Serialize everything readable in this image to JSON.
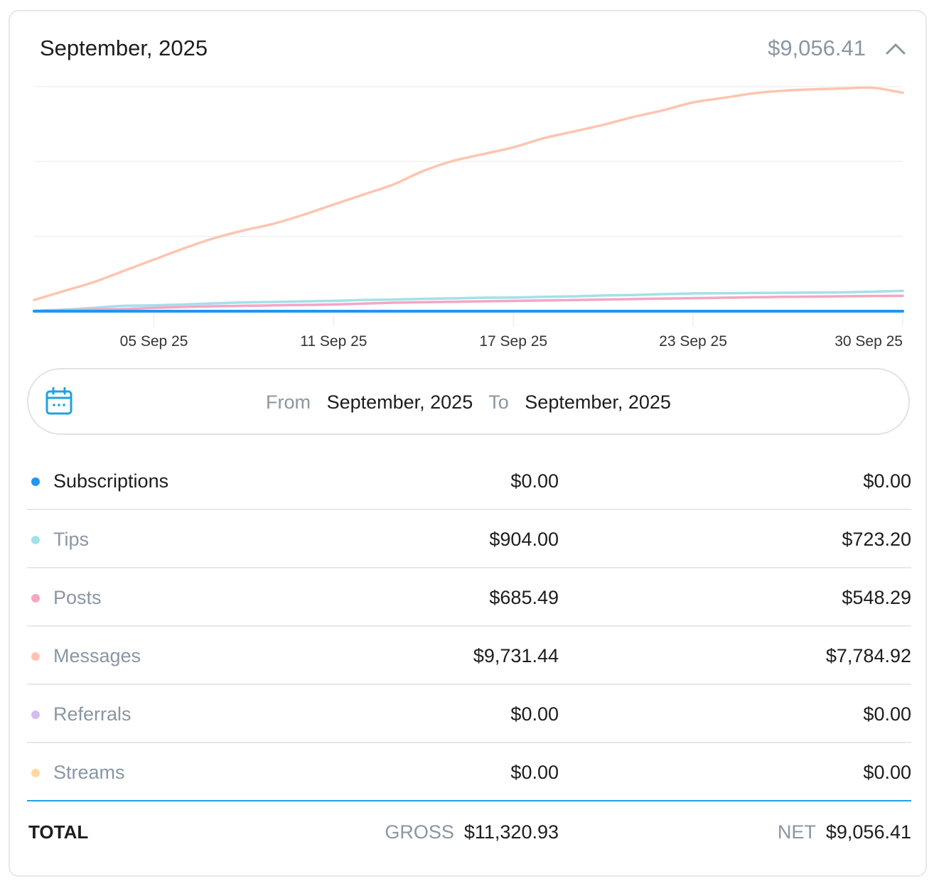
{
  "header": {
    "title": "September, 2025",
    "amount": "$9,056.41",
    "collapse_icon": "chevron-up-icon"
  },
  "chart_data": {
    "type": "line",
    "x": [
      "01 Sep 25",
      "02 Sep 25",
      "03 Sep 25",
      "04 Sep 25",
      "05 Sep 25",
      "06 Sep 25",
      "07 Sep 25",
      "08 Sep 25",
      "09 Sep 25",
      "10 Sep 25",
      "11 Sep 25",
      "12 Sep 25",
      "13 Sep 25",
      "14 Sep 25",
      "15 Sep 25",
      "16 Sep 25",
      "17 Sep 25",
      "18 Sep 25",
      "19 Sep 25",
      "20 Sep 25",
      "21 Sep 25",
      "22 Sep 25",
      "23 Sep 25",
      "24 Sep 25",
      "25 Sep 25",
      "26 Sep 25",
      "27 Sep 25",
      "28 Sep 25",
      "29 Sep 25",
      "30 Sep 25"
    ],
    "tick_labels": [
      "05 Sep 25",
      "11 Sep 25",
      "17 Sep 25",
      "23 Sep 25",
      "30 Sep 25"
    ],
    "grid": true,
    "ylim": [
      0,
      10000
    ],
    "series": [
      {
        "key": "subscriptions",
        "color": "#2196f3",
        "values": [
          0,
          0,
          0,
          0,
          0,
          0,
          0,
          0,
          0,
          0,
          0,
          0,
          0,
          0,
          0,
          0,
          0,
          0,
          0,
          0,
          0,
          0,
          0,
          0,
          0,
          0,
          0,
          0,
          0,
          0
        ]
      },
      {
        "key": "tips",
        "color": "#a3e0ea",
        "values": [
          20,
          70,
          150,
          240,
          260,
          300,
          350,
          390,
          410,
          440,
          460,
          500,
          520,
          550,
          570,
          600,
          610,
          640,
          660,
          700,
          720,
          760,
          790,
          800,
          810,
          820,
          830,
          840,
          870,
          904
        ]
      },
      {
        "key": "posts",
        "color": "#f5a6c2",
        "values": [
          10,
          40,
          70,
          100,
          150,
          190,
          220,
          240,
          260,
          280,
          300,
          340,
          380,
          400,
          420,
          440,
          460,
          480,
          500,
          520,
          540,
          560,
          580,
          600,
          620,
          640,
          650,
          665,
          675,
          685
        ]
      },
      {
        "key": "messages",
        "color": "#ffc4b0",
        "values": [
          500,
          900,
          1300,
          1800,
          2300,
          2800,
          3250,
          3600,
          3900,
          4300,
          4750,
          5200,
          5650,
          6250,
          6700,
          7000,
          7300,
          7700,
          8000,
          8300,
          8650,
          8950,
          9300,
          9500,
          9700,
          9820,
          9880,
          9920,
          9950,
          9731
        ]
      }
    ]
  },
  "date_range": {
    "icon": "calendar-icon",
    "from_label": "From",
    "from_value": "September, 2025",
    "to_label": "To",
    "to_value": "September, 2025"
  },
  "rows": [
    {
      "label": "Subscriptions",
      "gross": "$0.00",
      "net": "$0.00",
      "color": "#2196f3",
      "label_color": "#1d1d1f"
    },
    {
      "label": "Tips",
      "gross": "$904.00",
      "net": "$723.20",
      "color": "#a3e0ea",
      "label_color": "#8a96a3"
    },
    {
      "label": "Posts",
      "gross": "$685.49",
      "net": "$548.29",
      "color": "#f5a6c2",
      "label_color": "#8a96a3"
    },
    {
      "label": "Messages",
      "gross": "$9,731.44",
      "net": "$7,784.92",
      "color": "#ffc4b0",
      "label_color": "#8a96a3"
    },
    {
      "label": "Referrals",
      "gross": "$0.00",
      "net": "$0.00",
      "color": "#d4bcee",
      "label_color": "#8a96a3"
    },
    {
      "label": "Streams",
      "gross": "$0.00",
      "net": "$0.00",
      "color": "#ffd9a0",
      "label_color": "#8a96a3"
    }
  ],
  "total": {
    "label": "TOTAL",
    "gross_label": "GROSS",
    "gross_value": "$11,320.93",
    "net_label": "NET",
    "net_value": "$9,056.41"
  },
  "colors": {
    "accent": "#1fa2e0",
    "muted": "#8a96a3"
  }
}
